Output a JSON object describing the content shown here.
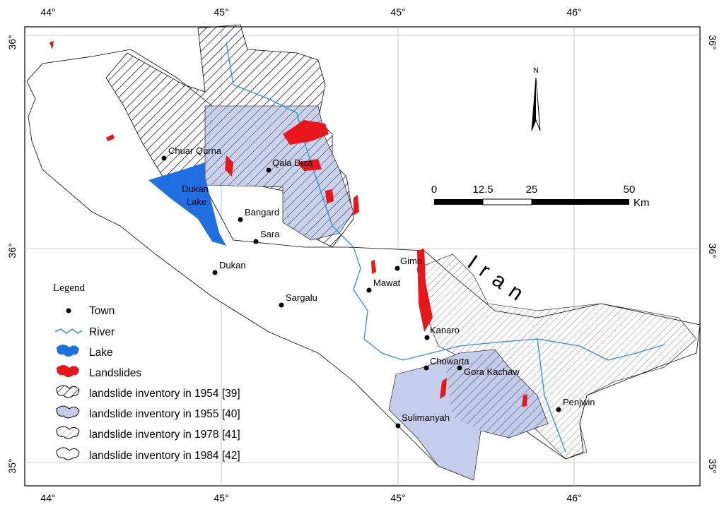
{
  "frame": {
    "top_labels": [
      "44°",
      "45°",
      "45°",
      "46°"
    ],
    "bottom_labels": [
      "44°",
      "45°",
      "45°",
      "46°"
    ],
    "left_labels": [
      "36°",
      "36°",
      "35°"
    ],
    "right_labels": [
      "36°",
      "36°",
      "35°"
    ]
  },
  "north": "N",
  "country": "Iran",
  "lake_label": [
    "Dukan",
    "Lake"
  ],
  "towns": [
    "Chuar Qurna",
    "Qala Diza",
    "Bangard",
    "Sara",
    "Dukan",
    "Sargalu",
    "Gimo",
    "Mawat",
    "Kanaro",
    "Chowarta",
    "Gora Kachaw",
    "Penjwin",
    "Sulimanyah"
  ],
  "scale_bar": {
    "labels": [
      "0",
      "12.5",
      "25",
      "50"
    ],
    "unit": "Km"
  },
  "legend": {
    "title": "Legend",
    "items": [
      "Town",
      "River",
      "Lake",
      "Landslides",
      "landslide inventory in 1954 [39]",
      "landslide inventory in 1955 [40]",
      "landslide inventory in 1978 [41]",
      "landslide inventory in 1984 [42]"
    ]
  }
}
